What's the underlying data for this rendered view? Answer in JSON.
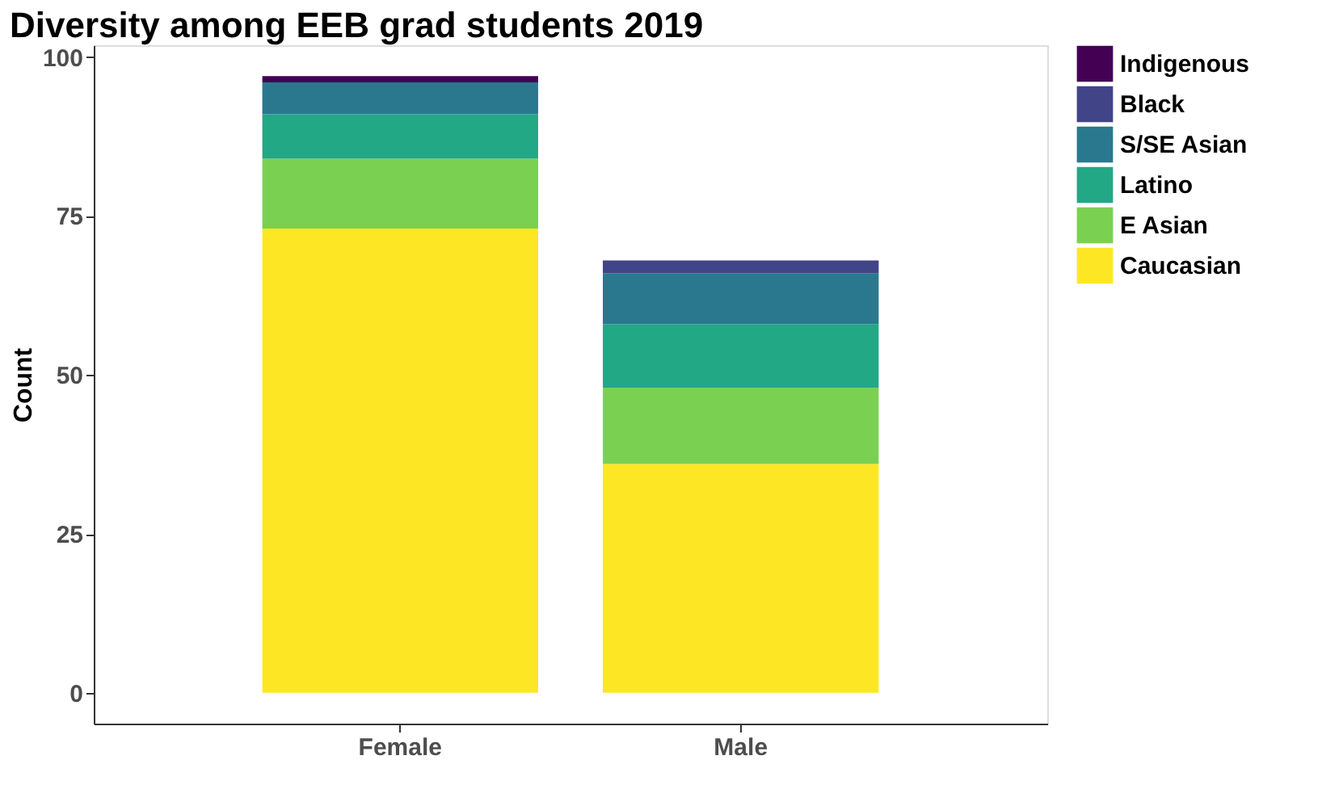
{
  "chart_data": {
    "type": "bar",
    "title": "Diversity among EEB grad students 2019",
    "ylabel": "Count",
    "categories": [
      "Female",
      "Male"
    ],
    "stacked": true,
    "legend": "right",
    "grid": false,
    "series": [
      {
        "name": "Caucasian",
        "color": "#fde725",
        "values": [
          73,
          36
        ]
      },
      {
        "name": "E Asian",
        "color": "#7ad151",
        "values": [
          11,
          12
        ]
      },
      {
        "name": "Latino",
        "color": "#22a884",
        "values": [
          7,
          10
        ]
      },
      {
        "name": "S/SE Asian",
        "color": "#2a788e",
        "values": [
          5,
          8
        ]
      },
      {
        "name": "Black",
        "color": "#414487",
        "values": [
          0,
          2
        ]
      },
      {
        "name": "Indigenous",
        "color": "#440154",
        "values": [
          1,
          0
        ]
      }
    ],
    "ylim": [
      -4.85,
      101.85
    ],
    "yticks": [
      0,
      25,
      50,
      75,
      100
    ]
  }
}
